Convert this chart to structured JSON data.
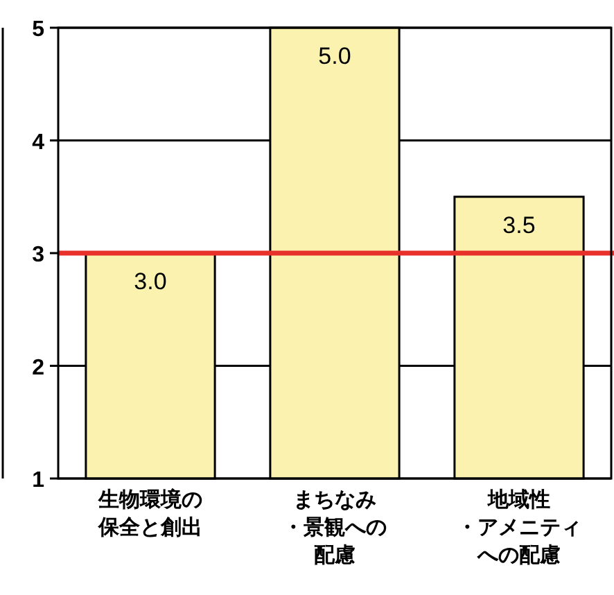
{
  "chart_data": {
    "type": "bar",
    "categories": [
      "生物環境の保全と創出",
      "まちなみ・景観への配慮",
      "地域性・アメニティへの配慮"
    ],
    "values": [
      3.0,
      5.0,
      3.5
    ],
    "color": "#faf2ae",
    "value_labels": [
      "3.0",
      "5.0",
      "3.5"
    ],
    "ylim": [
      1,
      5
    ],
    "yticks": [
      1,
      2,
      3,
      4,
      5
    ],
    "grid": "y",
    "ref_lines": [
      {
        "axis": "y",
        "value": 3,
        "color": "#e8302a"
      }
    ]
  }
}
